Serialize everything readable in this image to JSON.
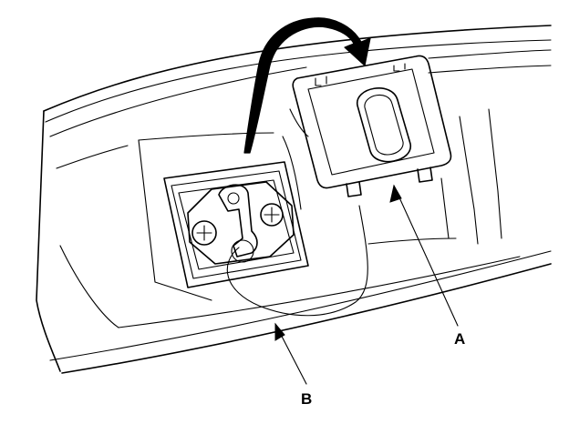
{
  "callouts": {
    "a": "A",
    "b": "B"
  },
  "colors": {
    "ink": "#000000",
    "background": "#ffffff"
  },
  "icons": {
    "rotation_arrow": "curved-arrow-icon",
    "screw": "screw-icon"
  }
}
